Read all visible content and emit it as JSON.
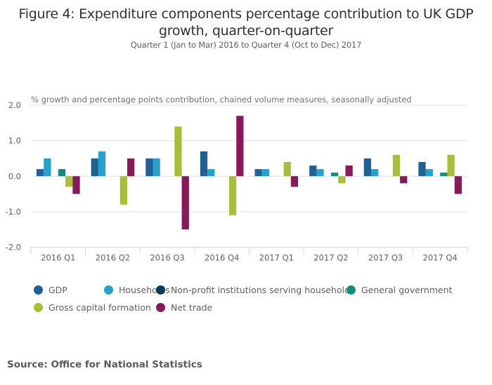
{
  "chart_data": {
    "type": "bar",
    "title": "Figure 4: Expenditure components percentage contribution to UK GDP growth, quarter-on-quarter",
    "title_lines": [
      "Figure 4: Expenditure components percentage contribution to UK GDP",
      "growth, quarter-on-quarter"
    ],
    "subtitle": "Quarter 1 (Jan to Mar) 2016 to Quarter 4 (Oct to Dec) 2017",
    "ylabel": "% growth and percentage points contribution, chained volume measures, seasonally adjusted",
    "xlabel": "",
    "ylim": [
      -2.0,
      2.0
    ],
    "yticks": [
      "2.0",
      "1.0",
      "0.0",
      "-1.0",
      "-2.0"
    ],
    "ytick_values": [
      2.0,
      1.0,
      0.0,
      -1.0,
      -2.0
    ],
    "grid": true,
    "legend_position": "bottom",
    "categories": [
      "2016 Q1",
      "2016 Q2",
      "2016 Q3",
      "2016 Q4",
      "2017 Q1",
      "2017 Q2",
      "2017 Q3",
      "2017 Q4"
    ],
    "series": [
      {
        "name": "GDP",
        "color": "#206095",
        "values": [
          0.2,
          0.5,
          0.5,
          0.7,
          0.2,
          0.3,
          0.5,
          0.4
        ]
      },
      {
        "name": "Households",
        "color": "#27a0cc",
        "values": [
          0.5,
          0.7,
          0.5,
          0.2,
          0.2,
          0.2,
          0.2,
          0.2
        ]
      },
      {
        "name": "Non-profit institutions serving households",
        "color": "#003c57",
        "values": [
          0.0,
          0.0,
          0.0,
          0.0,
          0.0,
          0.0,
          0.0,
          0.0
        ]
      },
      {
        "name": "General government",
        "color": "#118c7b",
        "values": [
          0.2,
          0.0,
          0.0,
          0.0,
          0.0,
          0.1,
          0.0,
          0.1
        ]
      },
      {
        "name": "Gross capital formation",
        "color": "#a8bd3a",
        "values": [
          -0.3,
          -0.8,
          1.4,
          -1.1,
          0.4,
          -0.2,
          0.6,
          0.6
        ]
      },
      {
        "name": "Net trade",
        "color": "#871a5b",
        "values": [
          -0.5,
          0.5,
          -1.5,
          1.7,
          -0.3,
          0.3,
          -0.2,
          -0.5
        ]
      }
    ]
  },
  "source": "Source: Office for National Statistics"
}
